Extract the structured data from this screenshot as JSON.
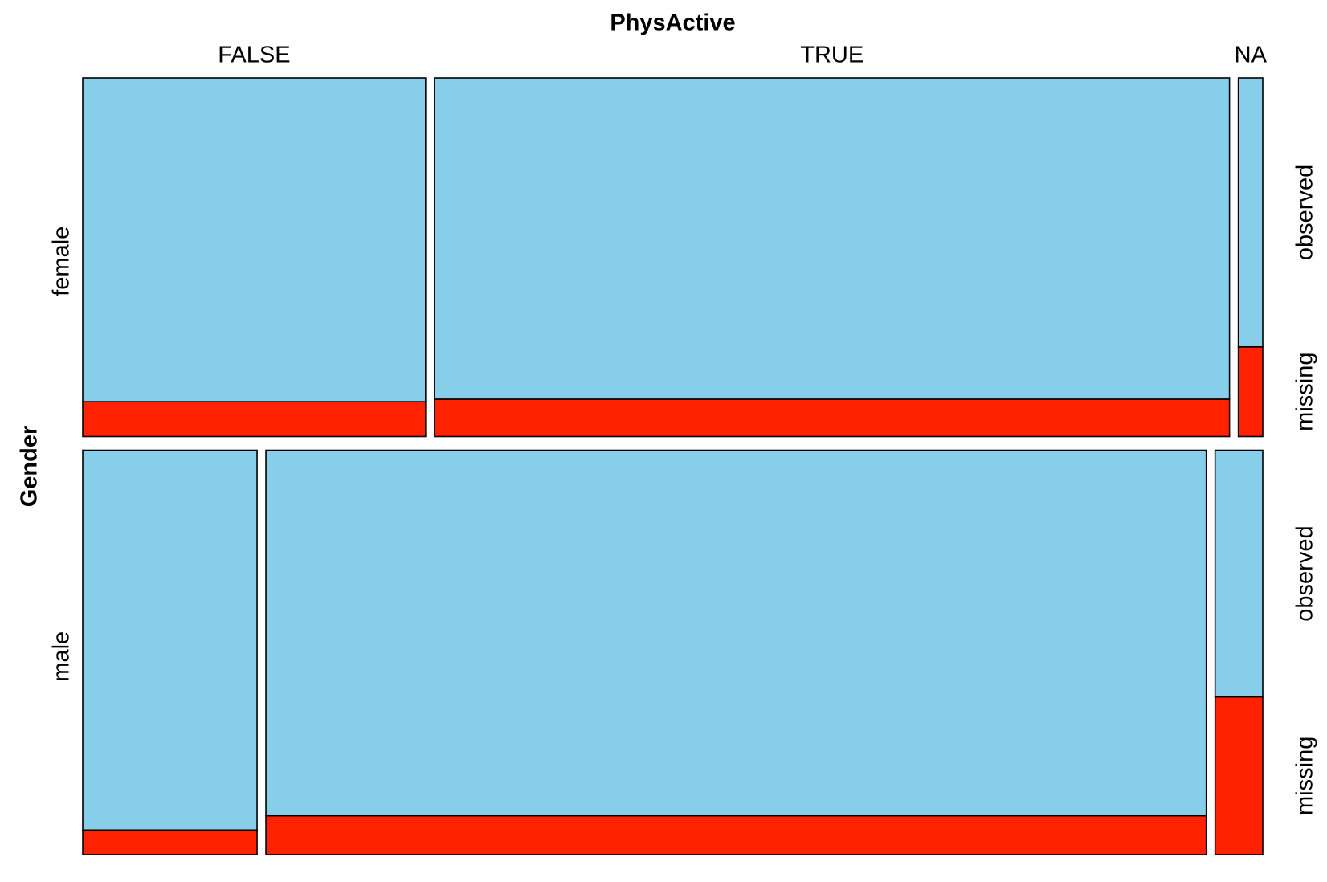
{
  "chart_data": {
    "type": "mosaic",
    "x_variable": "PhysActive",
    "y_variable": "Gender",
    "x_levels": [
      "FALSE",
      "TRUE",
      "NA"
    ],
    "y_levels": [
      "female",
      "male"
    ],
    "status_levels": [
      "observed",
      "missing"
    ],
    "colors": {
      "observed": "#87CEEB",
      "missing": "#FF2200"
    },
    "rows": [
      {
        "level": "female",
        "share": 0.47,
        "cells": [
          {
            "x": "FALSE",
            "share": 0.295,
            "missing_fraction": 0.097
          },
          {
            "x": "TRUE",
            "share": 0.684,
            "missing_fraction": 0.104
          },
          {
            "x": "NA",
            "share": 0.021,
            "missing_fraction": 0.25
          }
        ]
      },
      {
        "level": "male",
        "share": 0.53,
        "cells": [
          {
            "x": "FALSE",
            "share": 0.15,
            "missing_fraction": 0.061
          },
          {
            "x": "TRUE",
            "share": 0.809,
            "missing_fraction": 0.096
          },
          {
            "x": "NA",
            "share": 0.041,
            "missing_fraction": 0.39
          }
        ]
      }
    ]
  }
}
